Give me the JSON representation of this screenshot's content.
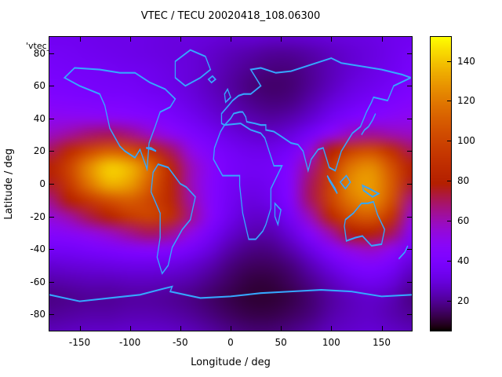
{
  "chart_data": {
    "type": "heatmap",
    "title": "VTEC / TECU 20020418_108.06300",
    "key_label": "'vtec_",
    "xlabel": "Longitude / deg",
    "ylabel": "Latitude / deg",
    "x_range": [
      -180,
      180
    ],
    "y_range": [
      -90,
      90
    ],
    "x_ticks": [
      -150,
      -100,
      -50,
      0,
      50,
      100,
      150
    ],
    "y_ticks": [
      -80,
      -60,
      -40,
      -20,
      0,
      20,
      40,
      60,
      80
    ],
    "colorbar": {
      "ticks": [
        20,
        40,
        60,
        80,
        100,
        120,
        140
      ],
      "range": [
        5,
        152
      ],
      "palette": "gnuplot-pm3d-rgbformulae-7-5-15",
      "top_color": "#ffff00",
      "bottom_color": "#0d0013"
    },
    "coastline_color": "#35a7ff",
    "frame_color": "#000000",
    "background_color": "#ffffff",
    "grid": {
      "lon_start": -180,
      "lon_step": 20,
      "lat_start": 90,
      "lat_step": -10,
      "values_tecu": [
        [
          34,
          34,
          33,
          32,
          32,
          31,
          30,
          30,
          29,
          28,
          28,
          27,
          27,
          28,
          29,
          30,
          31,
          33,
          34
        ],
        [
          36,
          35,
          34,
          33,
          32,
          31,
          30,
          29,
          27,
          24,
          22,
          20,
          20,
          22,
          25,
          28,
          30,
          33,
          36
        ],
        [
          38,
          37,
          36,
          35,
          34,
          33,
          31,
          29,
          26,
          22,
          19,
          17,
          17,
          20,
          24,
          28,
          31,
          34,
          38
        ],
        [
          40,
          39,
          38,
          37,
          36,
          34,
          32,
          29,
          25,
          21,
          17,
          15,
          16,
          20,
          25,
          30,
          33,
          36,
          40
        ],
        [
          44,
          43,
          42,
          41,
          40,
          38,
          35,
          31,
          27,
          23,
          19,
          17,
          18,
          23,
          29,
          34,
          38,
          41,
          44
        ],
        [
          50,
          50,
          50,
          49,
          47,
          44,
          40,
          35,
          30,
          26,
          23,
          21,
          23,
          28,
          35,
          41,
          45,
          48,
          50
        ],
        [
          58,
          63,
          68,
          70,
          66,
          58,
          50,
          42,
          36,
          31,
          28,
          27,
          30,
          38,
          50,
          60,
          64,
          61,
          58
        ],
        [
          70,
          86,
          102,
          112,
          106,
          90,
          70,
          52,
          42,
          36,
          33,
          33,
          38,
          55,
          80,
          100,
          105,
          90,
          70
        ],
        [
          80,
          100,
          126,
          142,
          136,
          115,
          85,
          60,
          46,
          38,
          35,
          36,
          44,
          65,
          95,
          120,
          126,
          106,
          80
        ],
        [
          75,
          95,
          120,
          136,
          131,
          110,
          85,
          60,
          45,
          36,
          33,
          35,
          45,
          70,
          100,
          126,
          130,
          110,
          75
        ],
        [
          65,
          80,
          95,
          106,
          111,
          101,
          85,
          62,
          45,
          35,
          30,
          33,
          44,
          70,
          100,
          120,
          126,
          106,
          65
        ],
        [
          55,
          62,
          72,
          82,
          95,
          100,
          90,
          65,
          45,
          33,
          27,
          28,
          38,
          60,
          85,
          105,
          110,
          92,
          55
        ],
        [
          45,
          48,
          52,
          58,
          65,
          70,
          65,
          52,
          38,
          28,
          23,
          23,
          30,
          45,
          62,
          78,
          82,
          70,
          45
        ],
        [
          36,
          37,
          39,
          41,
          44,
          46,
          44,
          38,
          30,
          22,
          18,
          18,
          23,
          32,
          44,
          54,
          58,
          50,
          36
        ],
        [
          28,
          29,
          30,
          31,
          32,
          32,
          31,
          28,
          23,
          17,
          14,
          14,
          17,
          24,
          32,
          40,
          43,
          38,
          28
        ],
        [
          22,
          23,
          24,
          24,
          25,
          25,
          24,
          22,
          18,
          14,
          11,
          11,
          14,
          19,
          25,
          31,
          34,
          30,
          22
        ],
        [
          18,
          19,
          20,
          20,
          21,
          21,
          20,
          18,
          15,
          12,
          10,
          10,
          12,
          16,
          21,
          25,
          27,
          24,
          18
        ],
        [
          20,
          21,
          22,
          22,
          23,
          23,
          22,
          20,
          17,
          14,
          12,
          12,
          14,
          17,
          22,
          25,
          26,
          23,
          20
        ],
        [
          24,
          25,
          26,
          26,
          27,
          27,
          26,
          24,
          21,
          18,
          16,
          16,
          18,
          21,
          25,
          27,
          28,
          26,
          24
        ]
      ]
    }
  }
}
